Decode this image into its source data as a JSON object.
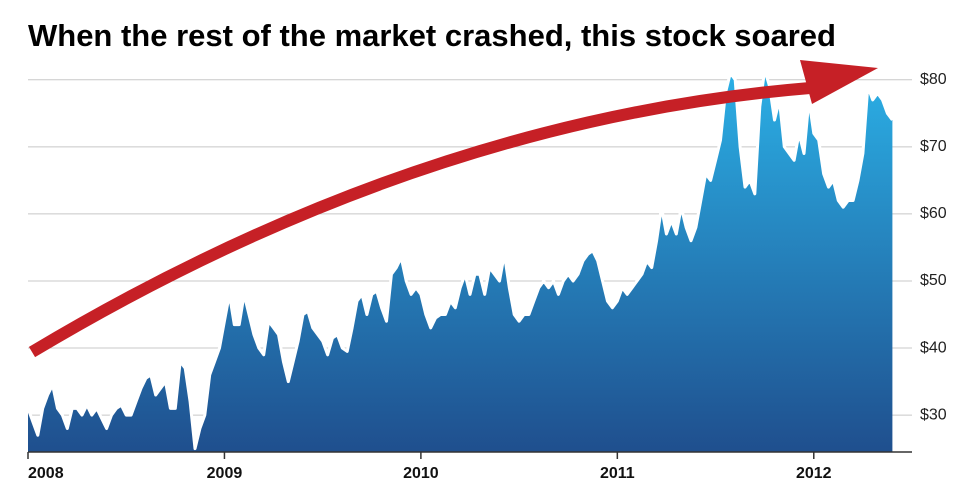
{
  "chart_data": {
    "type": "area",
    "title": "When the rest of the market crashed, this stock soared",
    "x": [
      2008,
      2008.025,
      2008.05,
      2008.075,
      2008.1,
      2008.125,
      2008.15,
      2008.175,
      2008.2,
      2008.225,
      2008.25,
      2008.275,
      2008.3,
      2008.325,
      2008.35,
      2008.375,
      2008.4,
      2008.425,
      2008.45,
      2008.475,
      2008.5,
      2008.525,
      2008.55,
      2008.575,
      2008.6,
      2008.625,
      2008.65,
      2008.675,
      2008.7,
      2008.725,
      2008.75,
      2008.775,
      2008.8,
      2008.825,
      2008.85,
      2008.875,
      2008.9,
      2008.925,
      2008.95,
      2008.975,
      2009,
      2009.025,
      2009.05,
      2009.075,
      2009.1,
      2009.125,
      2009.15,
      2009.175,
      2009.2,
      2009.225,
      2009.25,
      2009.275,
      2009.3,
      2009.325,
      2009.35,
      2009.375,
      2009.4,
      2009.425,
      2009.45,
      2009.475,
      2009.5,
      2009.525,
      2009.55,
      2009.575,
      2009.6,
      2009.625,
      2009.65,
      2009.675,
      2009.7,
      2009.725,
      2009.75,
      2009.775,
      2009.8,
      2009.825,
      2009.85,
      2009.875,
      2009.9,
      2009.925,
      2009.95,
      2009.975,
      2010,
      2010.025,
      2010.05,
      2010.075,
      2010.1,
      2010.125,
      2010.15,
      2010.175,
      2010.2,
      2010.225,
      2010.25,
      2010.275,
      2010.3,
      2010.325,
      2010.35,
      2010.375,
      2010.4,
      2010.425,
      2010.45,
      2010.475,
      2010.5,
      2010.525,
      2010.55,
      2010.575,
      2010.6,
      2010.625,
      2010.65,
      2010.675,
      2010.7,
      2010.725,
      2010.75,
      2010.775,
      2010.8,
      2010.825,
      2010.85,
      2010.875,
      2010.9,
      2010.925,
      2010.95,
      2010.975,
      2011,
      2011.025,
      2011.05,
      2011.075,
      2011.1,
      2011.125,
      2011.15,
      2011.175,
      2011.2,
      2011.225,
      2011.25,
      2011.275,
      2011.3,
      2011.325,
      2011.35,
      2011.375,
      2011.4,
      2011.425,
      2011.45,
      2011.475,
      2011.5,
      2011.525,
      2011.55,
      2011.575,
      2011.6,
      2011.625,
      2011.65,
      2011.675,
      2011.7,
      2011.725,
      2011.75,
      2011.775,
      2011.8,
      2011.825,
      2011.85,
      2011.875,
      2011.9,
      2011.925,
      2011.95,
      2011.975,
      2012,
      2012.025,
      2012.05,
      2012.075,
      2012.1,
      2012.125,
      2012.15,
      2012.175,
      2012.2,
      2012.225,
      2012.25,
      2012.275,
      2012.3,
      2012.325,
      2012.35,
      2012.375,
      2012.4
    ],
    "values": [
      31,
      29,
      27,
      31,
      33,
      34.5,
      31,
      30,
      28,
      31,
      31,
      30,
      31.5,
      30,
      31,
      29.5,
      28,
      30,
      31,
      31.5,
      30,
      30,
      32,
      34,
      35.5,
      36,
      33,
      34,
      35,
      31,
      31,
      38,
      37,
      32,
      25,
      28,
      30,
      36,
      38,
      40,
      44,
      48,
      43.5,
      43.5,
      48,
      45,
      42,
      40,
      39,
      44,
      43,
      42,
      38,
      35,
      38,
      41,
      45,
      45.5,
      43,
      42,
      41,
      39,
      41.5,
      42,
      40,
      39.5,
      43,
      47,
      48,
      45,
      48,
      48.5,
      46,
      44,
      51,
      52,
      53.5,
      50,
      48,
      49,
      48,
      45,
      43,
      44.5,
      45,
      45,
      47,
      46,
      49,
      51,
      48,
      51,
      51,
      48,
      52,
      51,
      50,
      54,
      49,
      45,
      44,
      45,
      45,
      47,
      49,
      50,
      49,
      50,
      48,
      50,
      51,
      50,
      51,
      53,
      54,
      54.5,
      53,
      50,
      47,
      46,
      47,
      49,
      48,
      49,
      50,
      51,
      53,
      52,
      56,
      61,
      57,
      59,
      57,
      61,
      58,
      56,
      58,
      62,
      66,
      65,
      68,
      71,
      78,
      81,
      80,
      70,
      64,
      65,
      63,
      76,
      81.5,
      79,
      74,
      77,
      70,
      69,
      68,
      72,
      69,
      77,
      72,
      71,
      66,
      64,
      65,
      62,
      61,
      62,
      62,
      65,
      69,
      79,
      77,
      78,
      77,
      75,
      74
    ],
    "xlim": [
      2008,
      2012.5
    ],
    "xticks": [
      2008,
      2009,
      2010,
      2011,
      2012
    ],
    "ylim": [
      24.5,
      82.5
    ],
    "yticks": [
      {
        "value": 30,
        "label": "$30"
      },
      {
        "value": 40,
        "label": "$40"
      },
      {
        "value": 50,
        "label": "$50"
      },
      {
        "value": 60,
        "label": "$60"
      },
      {
        "value": 70,
        "label": "$70"
      },
      {
        "value": 80,
        "label": "$80"
      }
    ],
    "grid": true,
    "color": "#1f63a6",
    "line_color": "#ffffff"
  }
}
